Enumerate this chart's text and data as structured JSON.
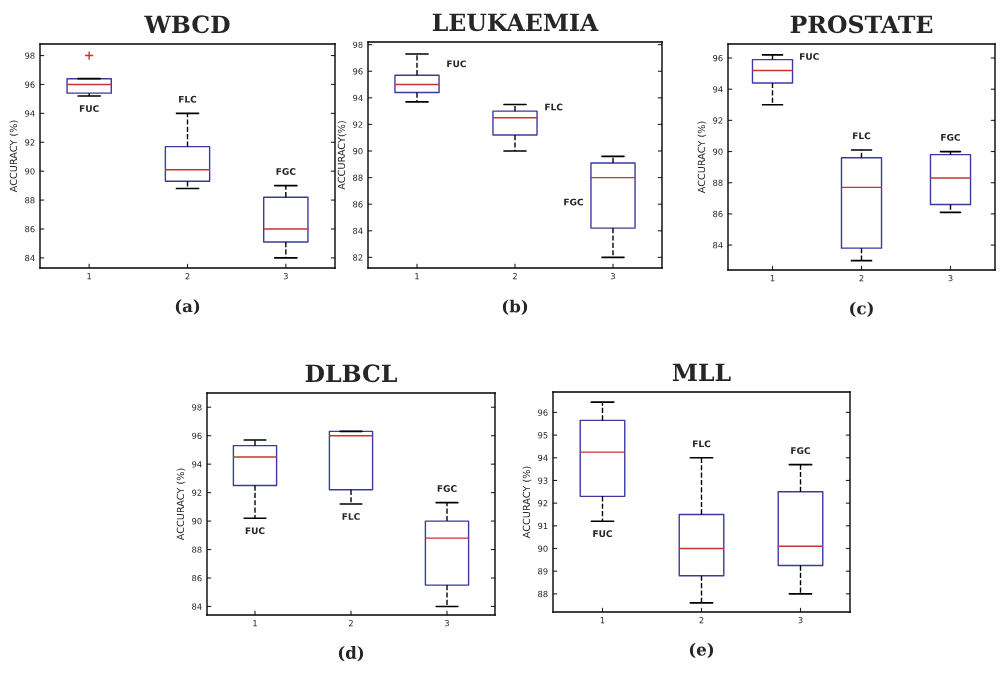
{
  "chart_data": [
    {
      "type": "box",
      "title": "WBCD",
      "ylabel": "ACCURACY (%)",
      "x": [
        1,
        2,
        3
      ],
      "xlim": [
        0.5,
        3.5
      ],
      "xticks": [
        1,
        2,
        3
      ],
      "ylim": [
        83.3,
        98.8
      ],
      "yticks": [
        84,
        86,
        88,
        90,
        92,
        94,
        96,
        98
      ],
      "boxes": [
        {
          "low": 95.2,
          "q1": 95.4,
          "median": 96.0,
          "q3": 96.4,
          "high": 96.4,
          "outliers": [
            98
          ]
        },
        {
          "low": 88.8,
          "q1": 89.3,
          "median": 90.1,
          "q3": 91.7,
          "high": 94.0
        },
        {
          "low": 84.0,
          "q1": 85.1,
          "median": 86.0,
          "q3": 88.2,
          "high": 89.0
        }
      ],
      "annotations": [
        "FUC",
        "FLC",
        "FGC",
        "(a)"
      ]
    },
    {
      "type": "box",
      "title": "LEUKAEMIA",
      "ylabel": "ACCURACY(%)",
      "x": [
        1,
        2,
        3
      ],
      "xlim": [
        0.5,
        3.5
      ],
      "xticks": [
        1,
        2,
        3
      ],
      "ylim": [
        81.2,
        98.2
      ],
      "yticks": [
        82,
        84,
        86,
        88,
        90,
        92,
        94,
        96,
        98
      ],
      "boxes": [
        {
          "low": 93.7,
          "q1": 94.4,
          "median": 95.0,
          "q3": 95.7,
          "high": 97.3
        },
        {
          "low": 90.0,
          "q1": 91.2,
          "median": 92.5,
          "q3": 93.0,
          "high": 93.5
        },
        {
          "low": 82.0,
          "q1": 84.2,
          "median": 88.0,
          "q3": 89.1,
          "high": 89.6
        }
      ],
      "annotations": [
        "FUC",
        "FLC",
        "FGC",
        "(b)"
      ]
    },
    {
      "type": "box",
      "title": "PROSTATE",
      "ylabel": "ACCURACY (%)",
      "x": [
        1,
        2,
        3
      ],
      "xlim": [
        0.5,
        3.5
      ],
      "xticks": [
        1,
        2,
        3
      ],
      "ylim": [
        82.4,
        96.9
      ],
      "yticks": [
        84,
        86,
        88,
        90,
        92,
        94,
        96
      ],
      "boxes": [
        {
          "low": 93.0,
          "q1": 94.4,
          "median": 95.2,
          "q3": 95.9,
          "high": 96.2
        },
        {
          "low": 83.0,
          "q1": 83.8,
          "median": 87.7,
          "q3": 89.6,
          "high": 90.1
        },
        {
          "low": 86.1,
          "q1": 86.6,
          "median": 88.3,
          "q3": 89.8,
          "high": 90.0
        }
      ],
      "annotations": [
        "FUC",
        "FLC",
        "FGC",
        "(c)"
      ]
    },
    {
      "type": "box",
      "title": "DLBCL",
      "ylabel": "ACCURACY (%)",
      "x": [
        1,
        2,
        3
      ],
      "xlim": [
        0.5,
        3.5
      ],
      "xticks": [
        1,
        2,
        3
      ],
      "ylim": [
        83.4,
        99.0
      ],
      "yticks": [
        84,
        86,
        88,
        90,
        92,
        94,
        96,
        98
      ],
      "boxes": [
        {
          "low": 90.2,
          "q1": 92.5,
          "median": 94.5,
          "q3": 95.3,
          "high": 95.7
        },
        {
          "low": 91.2,
          "q1": 92.2,
          "median": 96.0,
          "q3": 96.3,
          "high": 96.3
        },
        {
          "low": 84.0,
          "q1": 85.5,
          "median": 88.8,
          "q3": 90.0,
          "high": 91.3
        }
      ],
      "annotations": [
        "FUC",
        "FLC",
        "FGC",
        "(d)"
      ]
    },
    {
      "type": "box",
      "title": "MLL",
      "ylabel": "ACCURACY (%)",
      "x": [
        1,
        2,
        3
      ],
      "xlim": [
        0.5,
        3.5
      ],
      "xticks": [
        1,
        2,
        3
      ],
      "ylim": [
        87.2,
        96.9
      ],
      "yticks": [
        88,
        89,
        90,
        91,
        92,
        93,
        94,
        95,
        96
      ],
      "boxes": [
        {
          "low": 91.2,
          "q1": 92.3,
          "median": 94.25,
          "q3": 95.65,
          "high": 96.45
        },
        {
          "low": 87.6,
          "q1": 88.8,
          "median": 90.0,
          "q3": 91.5,
          "high": 94.0
        },
        {
          "low": 88.0,
          "q1": 89.25,
          "median": 90.1,
          "q3": 92.5,
          "high": 93.7
        }
      ],
      "annotations": [
        "FUC",
        "FLC",
        "FGC",
        "(e)"
      ]
    }
  ]
}
